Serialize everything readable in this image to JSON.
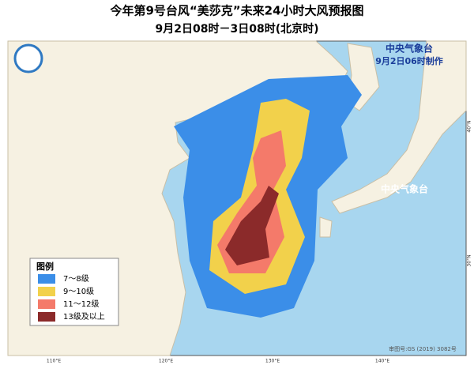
{
  "header": {
    "title": "今年第9号台风“美莎克”未来24小时大风预报图",
    "subtitle": "9月2日08时－3日08时(北京时)"
  },
  "map": {
    "agency": "中央气象台",
    "issued": "9月2日06时制作",
    "watermark": "中央气象台",
    "lon_labels": [
      "110°E",
      "120°E",
      "130°E",
      "140°E"
    ],
    "lat_labels": [
      "40°N",
      "30°N"
    ],
    "approval": "审图号:GS (2019) 3082号"
  },
  "legend": {
    "title": "图例",
    "items": [
      "7～8级",
      "9～10级",
      "11～12级",
      "13级及以上"
    ]
  }
}
